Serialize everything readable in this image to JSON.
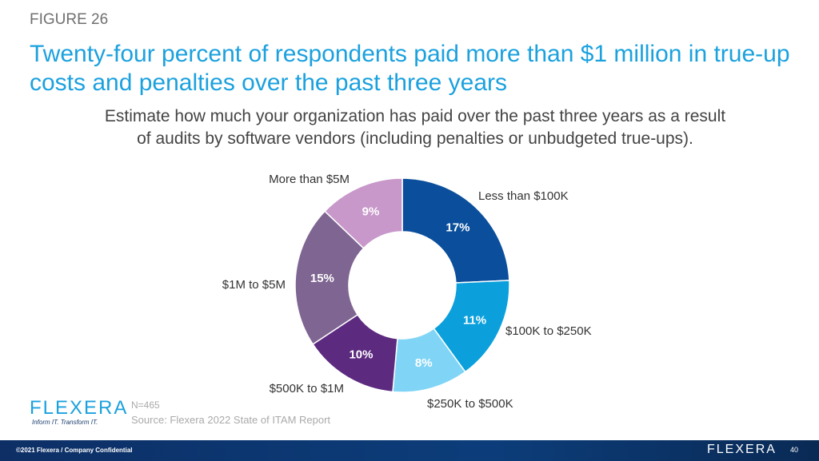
{
  "figure_label": "FIGURE 26",
  "title": "Twenty-four percent of respondents paid more than $1 million in true-up costs and penalties over the past three years",
  "subtitle_line1": "Estimate how much your organization has paid over the past three years as a result",
  "subtitle_line2": "of audits by software vendors (including penalties or unbudgeted true-ups).",
  "chart_data": {
    "type": "pie",
    "donut": true,
    "categories": [
      "Less than $100K",
      "$100K to $250K",
      "$250K to $500K",
      "$500K to $1M",
      "$1M to $5M",
      "More than $5M"
    ],
    "values": [
      17,
      11,
      8,
      10,
      15,
      9
    ],
    "labels": [
      "17%",
      "11%",
      "8%",
      "10%",
      "15%",
      "9%"
    ],
    "colors": [
      "#0b4f9c",
      "#0ba0dc",
      "#80d5f6",
      "#5c2a7f",
      "#7f6591",
      "#c898ca"
    ]
  },
  "logo": {
    "brand": "Flexera",
    "tagline": "Inform IT. Transform IT."
  },
  "sample": "N=465",
  "source": "Source: Flexera 2022 State of ITAM Report",
  "footer": {
    "copyright": "©2021 Flexera / Company Confidential",
    "brand": "Flexera",
    "page": "40"
  }
}
